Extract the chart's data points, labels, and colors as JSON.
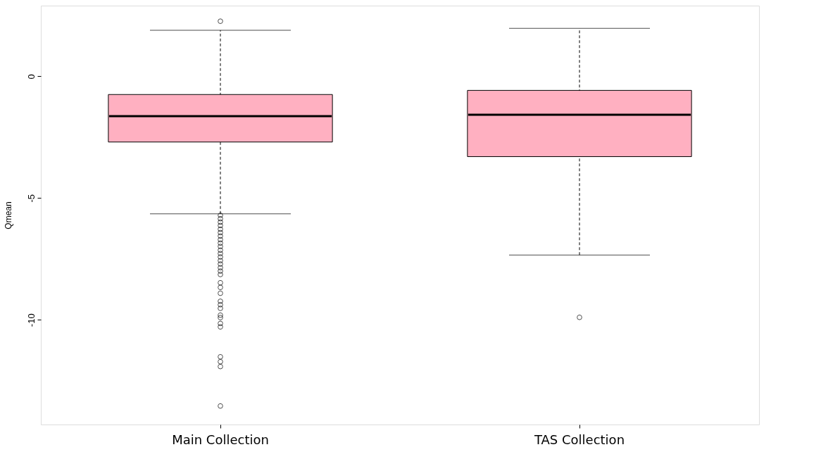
{
  "chart_data": {
    "type": "box",
    "ylabel": "Qmean",
    "categories": [
      "Main Collection",
      "TAS Collection"
    ],
    "color": "#ffb0c1",
    "boxes": [
      {
        "low": -5.65,
        "q1": -2.7,
        "median": -1.64,
        "q3": -0.75,
        "high": 1.89,
        "outliers": [
          2.26,
          -5.71,
          -5.85,
          -5.99,
          -6.13,
          -6.28,
          -6.42,
          -6.56,
          -6.71,
          -6.85,
          -6.99,
          -7.14,
          -7.28,
          -7.42,
          -7.57,
          -7.71,
          -7.86,
          -8.0,
          -8.14,
          -8.48,
          -8.67,
          -8.91,
          -9.24,
          -9.38,
          -9.53,
          -9.81,
          -9.91,
          -10.15,
          -10.29,
          -11.52,
          -11.72,
          -11.92,
          -13.54
        ]
      },
      {
        "low": -7.34,
        "q1": -3.3,
        "median": -1.58,
        "q3": -0.58,
        "high": 1.97,
        "outliers": [
          -9.9
        ]
      }
    ],
    "ylim": [
      -14.3,
      2.9
    ],
    "yticks": [
      -10,
      -5,
      0
    ],
    "grid": false
  }
}
